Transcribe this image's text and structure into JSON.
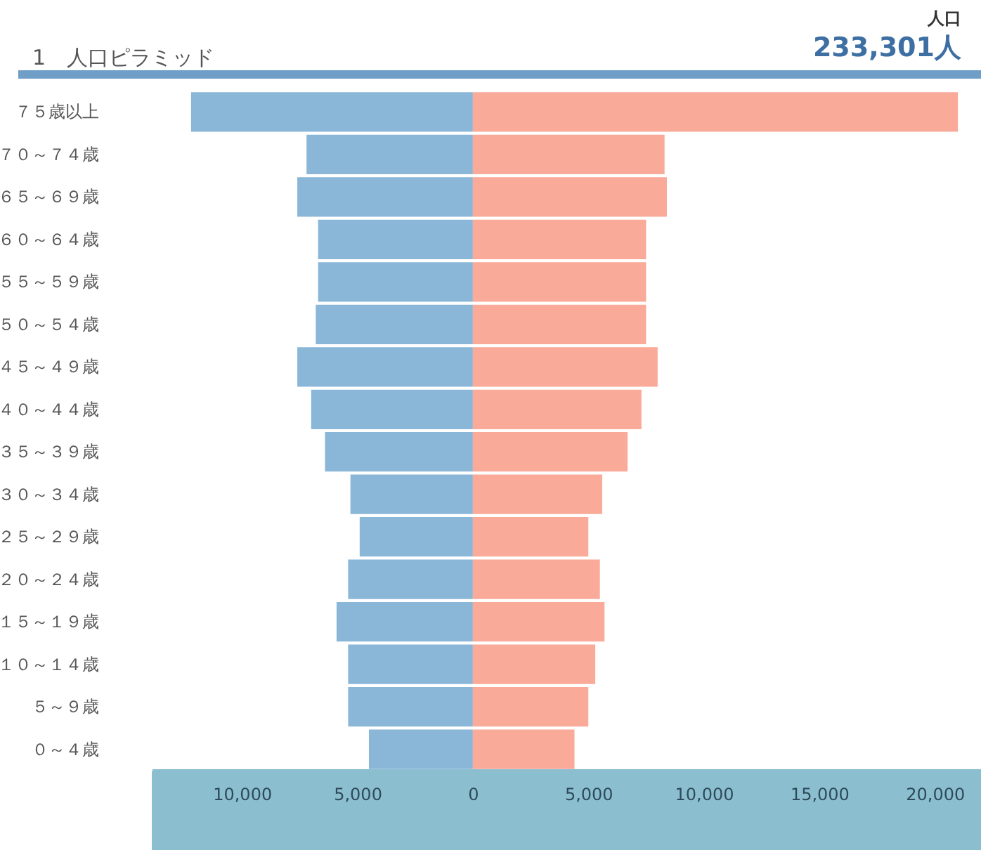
{
  "chart_data": {
    "type": "bar",
    "orientation": "horizontal",
    "title": "1　人口ピラミッド",
    "annotations": [
      "人口",
      "233,301人"
    ],
    "categories": [
      "７５歳以上",
      "７０～７４歳",
      "６５～６９歳",
      "６０～６４歳",
      "５５～５９歳",
      "５０～５４歳",
      "４５～４９歳",
      "４０～４４歳",
      "３５～３９歳",
      "３０～３４歳",
      "２５～２９歳",
      "２０～２４歳",
      "１５～１９歳",
      "１０～１４歳",
      "５～９歳",
      "０～４歳"
    ],
    "series": [
      {
        "color": "#8ab6d8",
        "values": [
          -12200,
          -7200,
          -7600,
          -6700,
          -6700,
          -6800,
          -7600,
          -7000,
          -6400,
          -5300,
          -4900,
          -5400,
          -5900,
          -5400,
          -5400,
          -4500
        ]
      },
      {
        "color": "#f9aa98",
        "values": [
          21000,
          8300,
          8400,
          7500,
          7500,
          7500,
          8000,
          7300,
          6700,
          5600,
          5000,
          5500,
          5700,
          5300,
          5000,
          4400
        ]
      }
    ],
    "xlim": [
      -13900,
      22000
    ],
    "xticks": [
      {
        "value": -10000,
        "label": "10,000"
      },
      {
        "value": -5000,
        "label": "5,000"
      },
      0,
      {
        "value": 5000,
        "label": "5,000"
      },
      {
        "value": 10000,
        "label": "10,000"
      },
      {
        "value": 15000,
        "label": "15,000"
      },
      {
        "value": 20000,
        "label": "20,000"
      }
    ],
    "stacked": true,
    "grid": false
  }
}
